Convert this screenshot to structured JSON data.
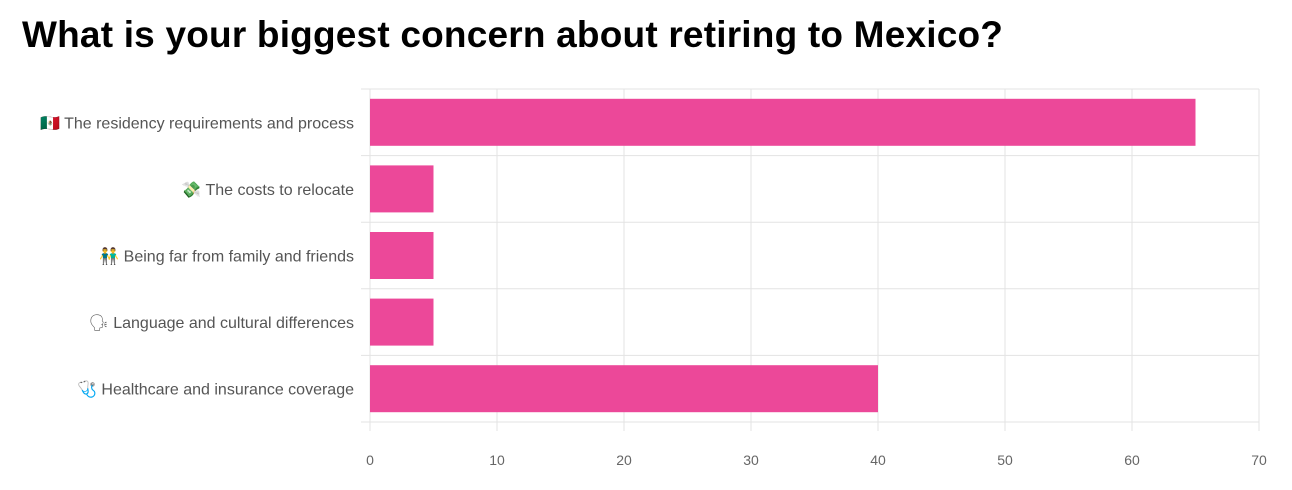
{
  "title": "What is your biggest concern about retiring to Mexico?",
  "chart_data": {
    "type": "bar",
    "orientation": "horizontal",
    "title": "What is your biggest concern about retiring to Mexico?",
    "categories": [
      "🇲🇽 The residency requirements and process",
      "💸 The costs to relocate",
      "👬 Being far from family and friends",
      "🗣 Language and cultural differences",
      "🩺 Healthcare and insurance coverage"
    ],
    "values": [
      65,
      5,
      5,
      5,
      40
    ],
    "xlim": [
      0,
      70
    ],
    "xticks": [
      0,
      10,
      20,
      30,
      40,
      50,
      60,
      70
    ],
    "xlabel": "",
    "ylabel": "",
    "grid": true,
    "legend": "none",
    "bar_color": "#ec4899",
    "grid_color": "#e3e3e3"
  }
}
